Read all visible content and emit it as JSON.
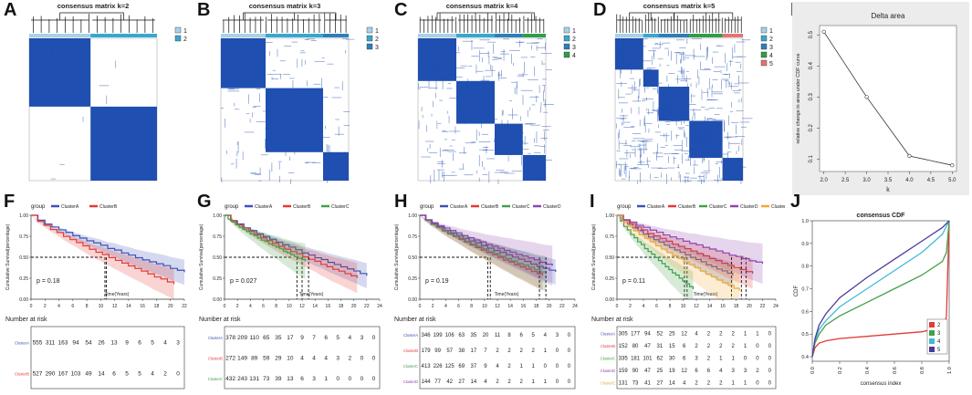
{
  "colors": {
    "consensus": "#1f4fb0",
    "c1": "#a6d3ea",
    "c2": "#38a7cf",
    "c3": "#2c7fb8",
    "c4": "#2e9e47",
    "c5": "#e57373",
    "clusterA": "#3f51b5",
    "clusterB": "#e53935",
    "clusterC": "#43a047",
    "clusterD": "#8e44ad",
    "clusterE": "#f0a830"
  },
  "matrices": [
    {
      "label": "A",
      "title": "consensus matrix k=2",
      "legend": [
        "1",
        "2"
      ]
    },
    {
      "label": "B",
      "title": "consensus matrix k=3",
      "legend": [
        "1",
        "2",
        "3"
      ]
    },
    {
      "label": "C",
      "title": "consensus matrix k=4",
      "legend": [
        "1",
        "2",
        "3",
        "4"
      ]
    },
    {
      "label": "D",
      "title": "consensus matrix k=5",
      "legend": [
        "1",
        "2",
        "3",
        "4",
        "5"
      ]
    }
  ],
  "delta": {
    "label": "E",
    "chart_data": {
      "type": "line",
      "title": "Delta area",
      "xlabel": "k",
      "ylabel": "relative change in area under CDF curve",
      "x": [
        2,
        3,
        4,
        5
      ],
      "y": [
        0.51,
        0.3,
        0.11,
        0.08
      ],
      "xlim": [
        1.9,
        5.1
      ],
      "ylim": [
        0.06,
        0.53
      ],
      "xticks": [
        "2.0",
        "2.5",
        "3.0",
        "3.5",
        "4.0",
        "4.5",
        "5.0"
      ],
      "yticks": [
        "0.1",
        "0.2",
        "0.3",
        "0.4",
        "0.5"
      ]
    }
  },
  "km": [
    {
      "label": "F",
      "legend_title": "group",
      "groups": [
        "ClusterA",
        "ClusterB"
      ],
      "pvalue": "p = 0.18",
      "ylabel": "Cumulative Survival(percentage)",
      "xlabel": "Time(Years)",
      "xticks": [
        "0",
        "2",
        "4",
        "6",
        "8",
        "10",
        "12",
        "14",
        "16",
        "18",
        "20",
        "22"
      ],
      "yticks": [
        "0.00",
        "0.25",
        "0.50",
        "0.75",
        "1.00"
      ],
      "risk_title": "Number at risk",
      "risk": [
        [
          "555",
          "311",
          "163",
          "94",
          "54",
          "26",
          "13",
          "9",
          "6",
          "5",
          "4",
          "3"
        ],
        [
          "527",
          "290",
          "167",
          "103",
          "49",
          "14",
          "6",
          "5",
          "5",
          "4",
          "2",
          "0"
        ]
      ]
    },
    {
      "label": "G",
      "legend_title": "group",
      "groups": [
        "ClusterA",
        "ClusterB",
        "ClusterC"
      ],
      "pvalue": "p = 0.027",
      "ylabel": "Cumulative Survival(percentage)",
      "xlabel": "Time(Years)",
      "xticks": [
        "0",
        "2",
        "4",
        "6",
        "8",
        "10",
        "12",
        "14",
        "16",
        "18",
        "20",
        "22",
        "24"
      ],
      "yticks": [
        "0.00",
        "0.25",
        "0.50",
        "0.75",
        "1.00"
      ],
      "risk_title": "Number at risk",
      "risk": [
        [
          "378",
          "209",
          "110",
          "65",
          "35",
          "17",
          "9",
          "7",
          "6",
          "5",
          "4",
          "3",
          "0"
        ],
        [
          "272",
          "149",
          "89",
          "59",
          "29",
          "10",
          "4",
          "4",
          "4",
          "3",
          "2",
          "0",
          "0"
        ],
        [
          "432",
          "243",
          "131",
          "73",
          "39",
          "13",
          "6",
          "3",
          "1",
          "0",
          "0",
          "0",
          "0"
        ]
      ]
    },
    {
      "label": "H",
      "legend_title": "group",
      "groups": [
        "ClusterA",
        "ClusterB",
        "ClusterC",
        "ClusterD"
      ],
      "pvalue": "p = 0.19",
      "ylabel": "Cumulative Survival(percentage)",
      "xlabel": "Time(Years)",
      "xticks": [
        "0",
        "2",
        "4",
        "6",
        "8",
        "10",
        "12",
        "14",
        "16",
        "18",
        "20",
        "22",
        "24"
      ],
      "yticks": [
        "0.00",
        "0.25",
        "0.50",
        "0.75",
        "1.00"
      ],
      "risk_title": "Number at risk",
      "risk": [
        [
          "346",
          "199",
          "106",
          "63",
          "35",
          "20",
          "11",
          "8",
          "6",
          "5",
          "4",
          "3",
          "0"
        ],
        [
          "179",
          "99",
          "57",
          "38",
          "17",
          "7",
          "2",
          "2",
          "2",
          "2",
          "1",
          "0",
          "0"
        ],
        [
          "413",
          "226",
          "125",
          "69",
          "37",
          "9",
          "4",
          "2",
          "1",
          "1",
          "0",
          "0",
          "0"
        ],
        [
          "144",
          "77",
          "42",
          "27",
          "14",
          "4",
          "2",
          "2",
          "2",
          "1",
          "1",
          "0",
          "0"
        ]
      ]
    },
    {
      "label": "I",
      "legend_title": "group",
      "groups": [
        "ClusterA",
        "ClusterB",
        "ClusterC",
        "ClusterD",
        "ClusterE"
      ],
      "pvalue": "p = 0.11",
      "ylabel": "Cumulative Survival(percentage)",
      "xlabel": "Time(Years)",
      "xticks": [
        "0",
        "2",
        "4",
        "6",
        "8",
        "10",
        "12",
        "14",
        "16",
        "18",
        "20",
        "22",
        "24"
      ],
      "yticks": [
        "0.00",
        "0.25",
        "0.50",
        "0.75",
        "1.00"
      ],
      "risk_title": "Number at risk",
      "risk": [
        [
          "305",
          "177",
          "94",
          "52",
          "25",
          "12",
          "4",
          "2",
          "2",
          "2",
          "1",
          "1",
          "0"
        ],
        [
          "152",
          "80",
          "47",
          "31",
          "15",
          "6",
          "2",
          "2",
          "2",
          "2",
          "1",
          "0",
          "0"
        ],
        [
          "335",
          "181",
          "101",
          "62",
          "30",
          "6",
          "3",
          "2",
          "1",
          "1",
          "0",
          "0",
          "0"
        ],
        [
          "159",
          "90",
          "47",
          "25",
          "19",
          "12",
          "6",
          "6",
          "4",
          "3",
          "3",
          "2",
          "0"
        ],
        [
          "131",
          "73",
          "41",
          "27",
          "14",
          "4",
          "2",
          "2",
          "2",
          "1",
          "1",
          "0",
          "0"
        ]
      ]
    }
  ],
  "cdf": {
    "label": "J",
    "chart_data": {
      "type": "line",
      "title": "consensus CDF",
      "xlabel": "consensus index",
      "ylabel": "CDF",
      "xticks": [
        "0.0",
        "0.2",
        "0.4",
        "0.6",
        "0.8",
        "1.0"
      ],
      "yticks": [
        "0.4",
        "0.5",
        "0.6",
        "0.7",
        "0.8",
        "0.9",
        "1.0"
      ],
      "xlim": [
        0,
        1
      ],
      "ylim": [
        0.38,
        1.0
      ],
      "series": [
        {
          "name": "2",
          "x": [
            0,
            0.02,
            0.05,
            0.1,
            0.2,
            0.4,
            0.6,
            0.8,
            0.95,
            0.97,
            0.98,
            1.0
          ],
          "y": [
            0.4,
            0.44,
            0.46,
            0.47,
            0.48,
            0.49,
            0.5,
            0.51,
            0.53,
            0.55,
            0.58,
            1.0
          ]
        },
        {
          "name": "3",
          "x": [
            0,
            0.02,
            0.05,
            0.1,
            0.2,
            0.4,
            0.6,
            0.8,
            0.95,
            0.98,
            1.0
          ],
          "y": [
            0.4,
            0.46,
            0.5,
            0.54,
            0.58,
            0.64,
            0.7,
            0.76,
            0.82,
            0.86,
            1.0
          ]
        },
        {
          "name": "4",
          "x": [
            0,
            0.02,
            0.05,
            0.1,
            0.2,
            0.4,
            0.6,
            0.8,
            0.95,
            1.0
          ],
          "y": [
            0.4,
            0.47,
            0.52,
            0.56,
            0.62,
            0.7,
            0.78,
            0.86,
            0.94,
            1.0
          ]
        },
        {
          "name": "5",
          "x": [
            0,
            0.02,
            0.05,
            0.1,
            0.2,
            0.4,
            0.6,
            0.8,
            0.95,
            1.0
          ],
          "y": [
            0.4,
            0.48,
            0.54,
            0.59,
            0.66,
            0.75,
            0.83,
            0.91,
            0.97,
            1.0
          ]
        }
      ]
    }
  }
}
